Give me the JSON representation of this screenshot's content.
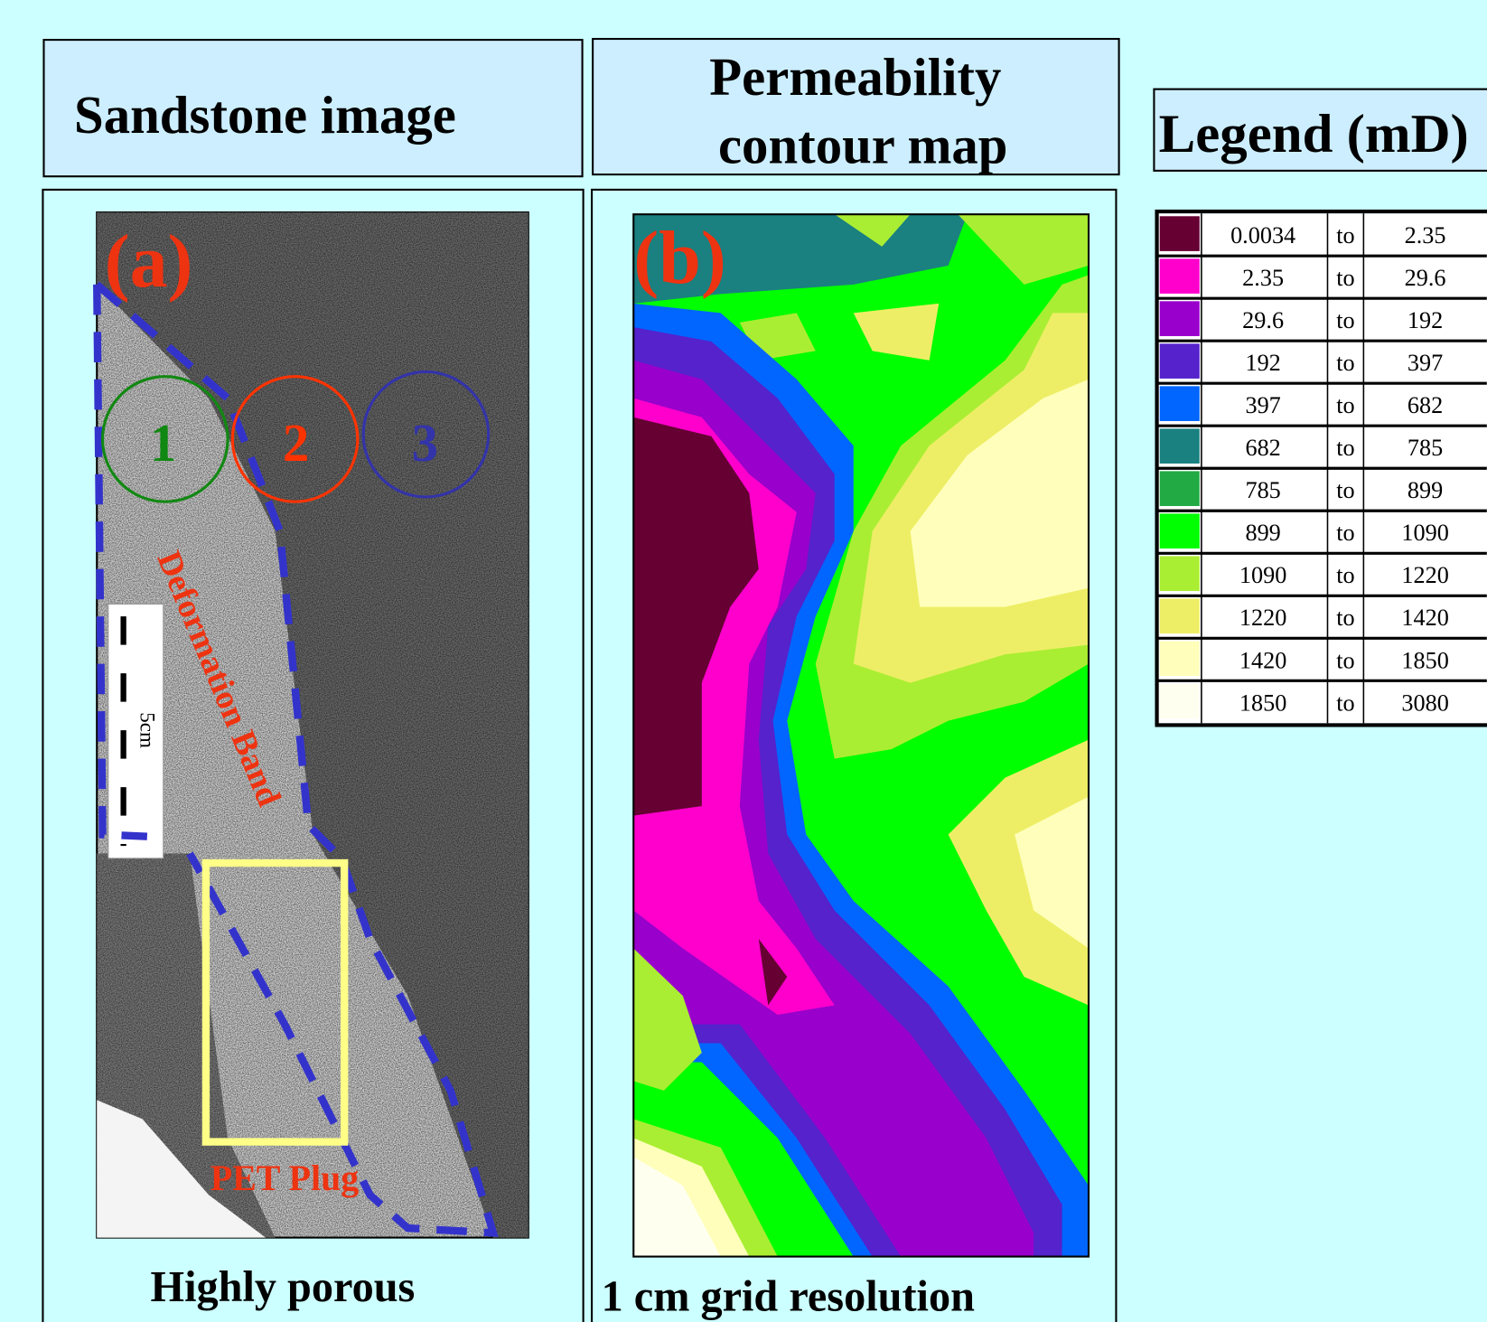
{
  "left_panel": {
    "title": "Sandstone image",
    "label": "(a)",
    "circles": [
      "1",
      "2",
      "3"
    ],
    "band_label": "Deformation Band",
    "plug_label": "PET Plug",
    "scale_label": "5cm",
    "caption": "Highly porous"
  },
  "middle_panel": {
    "title_lines": [
      "Permeability",
      "contour map"
    ],
    "label": "(b)",
    "caption": "1 cm grid resolution"
  },
  "legend": {
    "title": "Legend (mD)",
    "rows": [
      {
        "color": "#660033",
        "low": "0.0034",
        "to": "to",
        "high": "2.35"
      },
      {
        "color": "#ff00cc",
        "low": "2.35",
        "to": "to",
        "high": "29.6"
      },
      {
        "color": "#9900cc",
        "low": "29.6",
        "to": "to",
        "high": "192"
      },
      {
        "color": "#5522cc",
        "low": "192",
        "to": "to",
        "high": "397"
      },
      {
        "color": "#0066ff",
        "low": "397",
        "to": "to",
        "high": "682"
      },
      {
        "color": "#1a8080",
        "low": "682",
        "to": "to",
        "high": "785"
      },
      {
        "color": "#22aa44",
        "low": "785",
        "to": "to",
        "high": "899"
      },
      {
        "color": "#00ff00",
        "low": "899",
        "to": "to",
        "high": "1090"
      },
      {
        "color": "#aaee33",
        "low": "1090",
        "to": "to",
        "high": "1220"
      },
      {
        "color": "#eeee66",
        "low": "1220",
        "to": "to",
        "high": "1420"
      },
      {
        "color": "#ffffbb",
        "low": "1420",
        "to": "to",
        "high": "1850"
      },
      {
        "color": "#fffff0",
        "low": "1850",
        "to": "to",
        "high": "3080"
      }
    ]
  }
}
